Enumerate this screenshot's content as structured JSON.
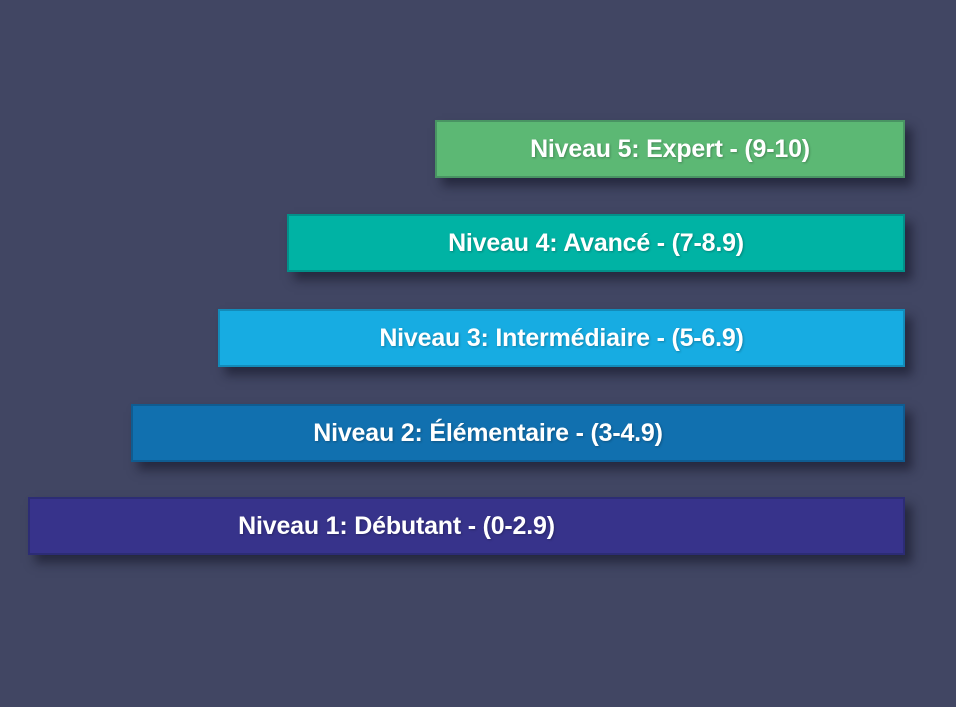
{
  "background_color": "#414663",
  "text_color": "#ffffff",
  "levels": [
    {
      "id": "niveau-5",
      "label": "Niveau 5: Expert - (9-10)",
      "color": "#5cb874"
    },
    {
      "id": "niveau-4",
      "label": "Niveau 4: Avancé - (7-8.9)",
      "color": "#00b3a4"
    },
    {
      "id": "niveau-3",
      "label": "Niveau 3: Intermédiaire - (5-6.9)",
      "color": "#17ace2"
    },
    {
      "id": "niveau-2",
      "label": "Niveau 2: Élémentaire - (3-4.9)",
      "color": "#1170af"
    },
    {
      "id": "niveau-1",
      "label": "Niveau 1: Débutant - (0-2.9)",
      "color": "#37338b"
    }
  ]
}
